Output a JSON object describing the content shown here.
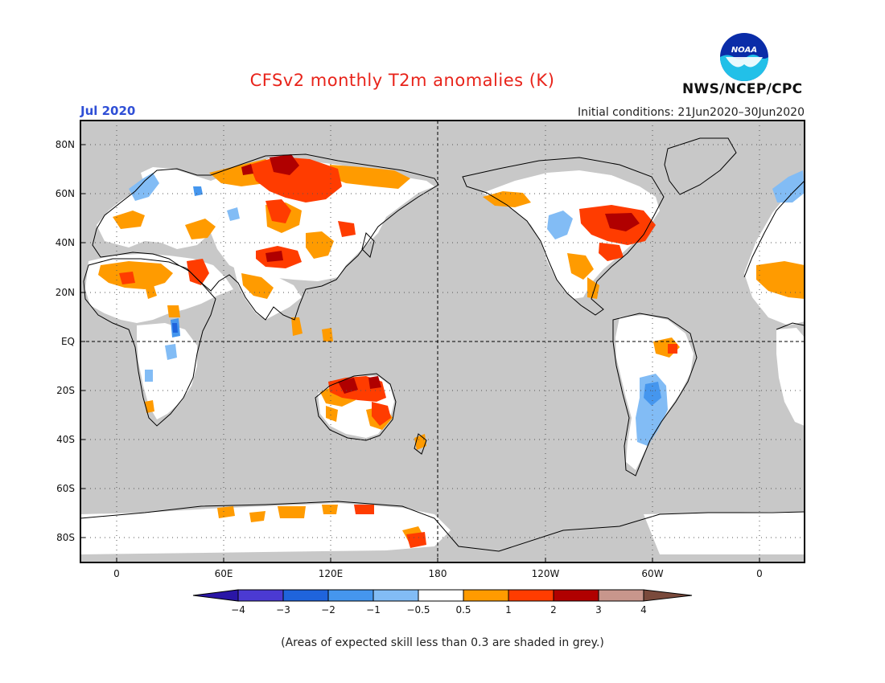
{
  "header": {
    "title": "CFSv2 monthly T2m anomalies (K)",
    "month": "Jul 2020",
    "initial_conditions": "Initial conditions: 21Jun2020–30Jun2020",
    "agency": "NWS/NCEP/CPC",
    "logo_text": "NOAA"
  },
  "map": {
    "projection": "equirectangular",
    "lon_range": [
      -20,
      380
    ],
    "lat_range": [
      -90,
      90
    ],
    "grey_shading": "skill < 0.3",
    "lat_labels": [
      "80N",
      "60N",
      "40N",
      "20N",
      "EQ",
      "20S",
      "40S",
      "60S",
      "80S"
    ],
    "lon_labels": [
      "0",
      "60E",
      "120E",
      "180",
      "120W",
      "60W",
      "0"
    ]
  },
  "legend": {
    "tick_labels": [
      "−4",
      "−3",
      "−2",
      "−1",
      "−0.5",
      "0.5",
      "1",
      "2",
      "3",
      "4"
    ],
    "colors": [
      "#2a16a6",
      "#4b3ad2",
      "#1f64dc",
      "#4596ee",
      "#82bcf5",
      "#ffffff",
      "#ff9b00",
      "#ff3c00",
      "#b00000",
      "#c8968c",
      "#7a4a3c"
    ]
  },
  "colors": {
    "grey": "#c8c8c8",
    "warm_light": "#ff9b00",
    "warm_mid": "#ff3c00",
    "warm_dark": "#b00000",
    "cool_light": "#82bcf5",
    "cool_mid": "#4596ee",
    "cool_dark": "#1f64dc",
    "neutral": "#ffffff"
  },
  "footnote": "(Areas of expected skill less than 0.3 are shaded in grey.)"
}
